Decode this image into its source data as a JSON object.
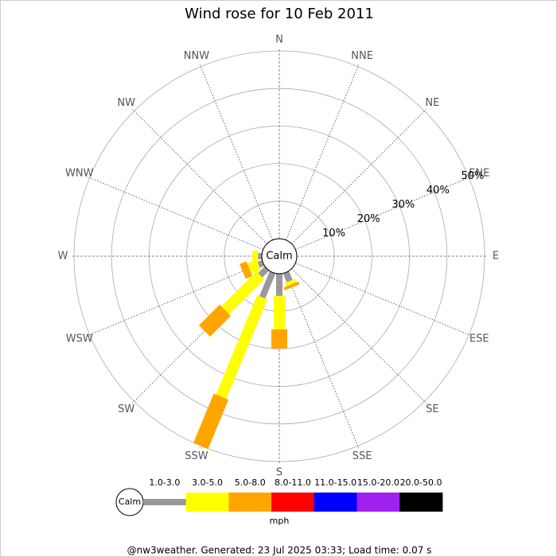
{
  "chart_data": {
    "type": "windrose",
    "title": "Wind rose for 10 Feb 2011",
    "categories": [
      "N",
      "NNE",
      "NE",
      "ENE",
      "E",
      "ESE",
      "SE",
      "SSE",
      "S",
      "SSW",
      "SW",
      "WSW",
      "W",
      "WNW",
      "NW",
      "NNW"
    ],
    "calm_label": "Calm",
    "unit": "mph",
    "footer": "@nw3weather.  Generated: 23 Jul 2025 03:33; Load time: 0.07 s",
    "ylim": [
      0,
      50
    ],
    "yticks": [
      {
        "value": 10,
        "label": "10%"
      },
      {
        "value": 20,
        "label": "20%"
      },
      {
        "value": 30,
        "label": "30%"
      },
      {
        "value": 40,
        "label": "40%"
      },
      {
        "value": 50,
        "label": "50%"
      }
    ],
    "series": [
      {
        "name": "1.0-3.0",
        "color": "#999999",
        "values": [
          0,
          0,
          0,
          0,
          0,
          0,
          0,
          2.5,
          5.9,
          7.2,
          2.5,
          1.3,
          1.0,
          0,
          0,
          0
        ]
      },
      {
        "name": "3.0-5.0",
        "color": "#ffff00",
        "values": [
          0,
          0,
          0,
          0,
          0,
          0,
          0,
          1.0,
          8.9,
          28.6,
          13.2,
          2.7,
          1.5,
          0,
          0,
          0
        ]
      },
      {
        "name": "5.0-8.0",
        "color": "#ffa500",
        "values": [
          0,
          0,
          0,
          0,
          0,
          0,
          0,
          0.8,
          5.1,
          14.2,
          7.8,
          1.9,
          0,
          0,
          0,
          0
        ]
      },
      {
        "name": "8.0-11.0",
        "color": "#ff0000",
        "values": [
          0,
          0,
          0,
          0,
          0,
          0,
          0,
          0,
          0,
          0,
          0,
          0,
          0,
          0,
          0,
          0
        ]
      },
      {
        "name": "11.0-15.0",
        "color": "#0000ff",
        "values": [
          0,
          0,
          0,
          0,
          0,
          0,
          0,
          0,
          0,
          0,
          0,
          0,
          0,
          0,
          0,
          0
        ]
      },
      {
        "name": "15.0-20.0",
        "color": "#a020f0",
        "values": [
          0,
          0,
          0,
          0,
          0,
          0,
          0,
          0,
          0,
          0,
          0,
          0,
          0,
          0,
          0,
          0
        ]
      },
      {
        "name": "20.0-50.0",
        "color": "#000000",
        "values": [
          0,
          0,
          0,
          0,
          0,
          0,
          0,
          0,
          0,
          0,
          0,
          0,
          0,
          0,
          0,
          0
        ]
      }
    ]
  }
}
